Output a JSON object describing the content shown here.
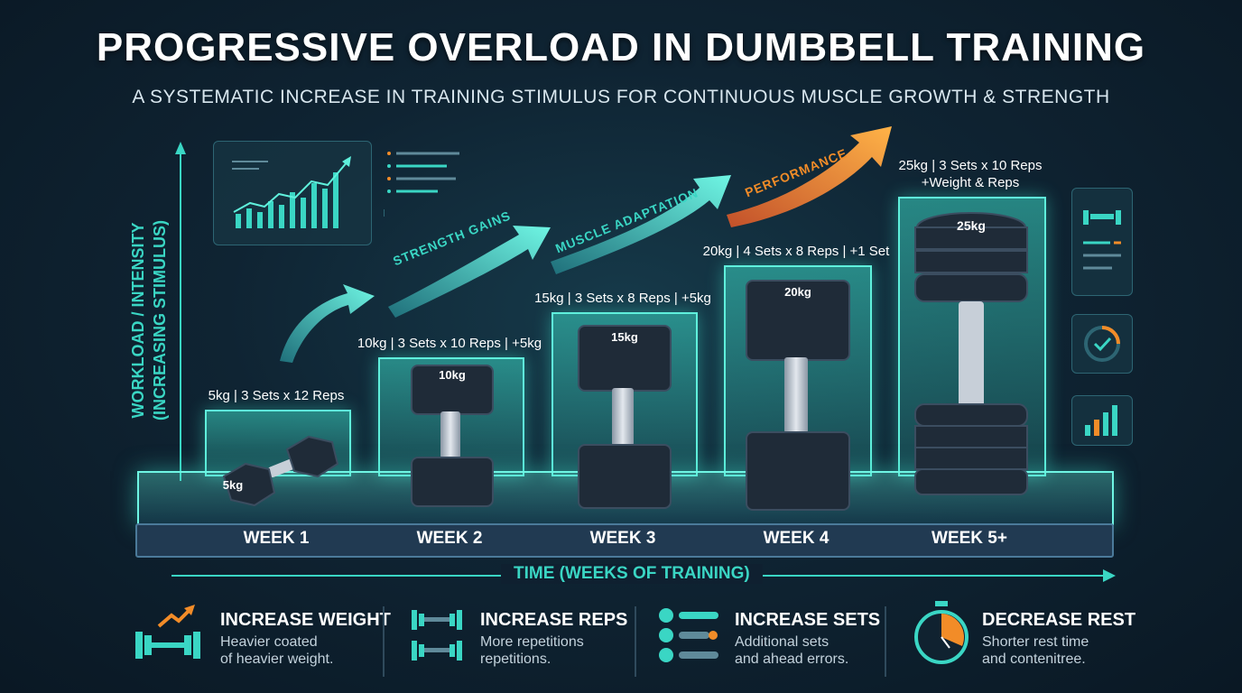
{
  "title": "PROGRESSIVE OVERLOAD IN DUMBBELL TRAINING",
  "subtitle": "A SYSTEMATIC INCREASE IN TRAINING STIMULUS FOR CONTINUOUS MUSCLE GROWTH & STRENGTH",
  "y_axis": {
    "line1": "WORKLOAD / INTENSITY",
    "line2": "(INCREASING STIMULUS)"
  },
  "x_axis": "TIME (WEEKS OF TRAINING)",
  "arrows": [
    "STRENGTH GAINS",
    "MUSCLE ADAPTATION",
    "PERFORMANCE"
  ],
  "weeks": [
    {
      "label": "WEEK 1",
      "spec": "5kg | 3 Sets x 12 Reps",
      "spec2": "",
      "weight": "5kg"
    },
    {
      "label": "WEEK 2",
      "spec": "10kg | 3 Sets x 10 Reps | +5kg",
      "spec2": "",
      "weight": "10kg"
    },
    {
      "label": "WEEK 3",
      "spec": "15kg | 3 Sets x 8 Reps | +5kg",
      "spec2": "",
      "weight": "15kg"
    },
    {
      "label": "WEEK 4",
      "spec": "20kg | 4 Sets x 8 Reps | +1 Set",
      "spec2": "",
      "weight": "20kg"
    },
    {
      "label": "WEEK 5+",
      "spec": "25kg | 3 Sets x 10 Reps",
      "spec2": "+Weight & Reps",
      "weight": "25kg"
    }
  ],
  "legend": [
    {
      "title": "INCREASE WEIGHT",
      "line1": "Heavier coated",
      "line2": "of heavier weight.",
      "icon": "dumbbell-arrow-icon"
    },
    {
      "title": "INCREASE REPS",
      "line1": "More repetitions",
      "line2": "repetitions.",
      "icon": "dumbbells-icon"
    },
    {
      "title": "INCREASE SETS",
      "line1": "Additional sets",
      "line2": "and ahead errors.",
      "icon": "sets-icon"
    },
    {
      "title": "DECREASE REST",
      "line1": "Shorter rest time",
      "line2": "and contenitree.",
      "icon": "stopwatch-icon"
    }
  ],
  "colors": {
    "accent": "#3ad6c4",
    "orange": "#f28c28",
    "bg": "#0f2433"
  }
}
